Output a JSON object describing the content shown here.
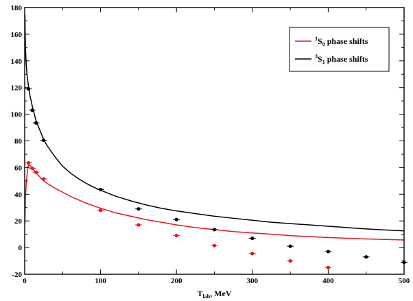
{
  "chart_data": {
    "type": "line",
    "xlabel": {
      "main": "T",
      "sub": "lab",
      "rest": ", MeV"
    },
    "ylabel": "",
    "xlim": [
      0,
      500
    ],
    "ylim": [
      -20,
      180
    ],
    "x_ticks": [
      0,
      100,
      200,
      300,
      400,
      500
    ],
    "y_ticks": [
      -20,
      0,
      20,
      40,
      60,
      80,
      100,
      120,
      140,
      160,
      180
    ],
    "grid": false,
    "legend_position": "top-right",
    "series": [
      {
        "name": "1S0 phase shifts",
        "legend": {
          "sup": "1",
          "base": "S",
          "sub": "0",
          "rest": " phase shifts"
        },
        "kind": "curve",
        "color": "#e8141b",
        "x": [
          0.3,
          1,
          2,
          3,
          4,
          5,
          7,
          10,
          15,
          20,
          25,
          30,
          40,
          50,
          60,
          70,
          80,
          90,
          100,
          120,
          140,
          160,
          180,
          200,
          225,
          250,
          275,
          300,
          325,
          350,
          375,
          400,
          425,
          450,
          475,
          500
        ],
        "y": [
          18,
          38,
          48,
          54,
          59,
          62,
          61.5,
          59.5,
          56,
          53,
          50,
          48,
          44.5,
          41.5,
          38.5,
          36,
          33.5,
          31.5,
          29.5,
          26,
          23.5,
          21,
          19,
          17,
          15,
          13.5,
          12,
          11,
          10,
          9,
          8.2,
          7.6,
          7,
          6.5,
          6.1,
          5.7
        ]
      },
      {
        "name": "3S1 phase shifts",
        "legend": {
          "sup": "3",
          "base": "S",
          "sub": "1",
          "rest": " phase shifts"
        },
        "kind": "curve",
        "color": "#000000",
        "x": [
          0.3,
          0.6,
          1,
          2,
          3,
          5,
          7,
          10,
          15,
          20,
          25,
          30,
          40,
          50,
          60,
          70,
          80,
          90,
          100,
          120,
          140,
          160,
          180,
          200,
          225,
          250,
          275,
          300,
          325,
          350,
          375,
          400,
          425,
          450,
          475,
          500
        ],
        "y": [
          175,
          162,
          150,
          138,
          130,
          121,
          114,
          106,
          95,
          88,
          81,
          76,
          68,
          61,
          56,
          52,
          48.5,
          45.5,
          43,
          38.5,
          35,
          32,
          29.5,
          27.5,
          25.5,
          23.5,
          22,
          20.5,
          19,
          18,
          17,
          16,
          15,
          14,
          13.2,
          12.5
        ]
      },
      {
        "name": "1S0 data",
        "kind": "points",
        "color": "#e8141b",
        "x": [
          5,
          10,
          15,
          25,
          100,
          150,
          200,
          250,
          300,
          350,
          400
        ],
        "y": [
          63.5,
          59.5,
          56.5,
          51.5,
          28,
          17,
          9,
          1.5,
          -4.5,
          -10,
          -15
        ]
      },
      {
        "name": "3S1 data",
        "kind": "points",
        "color": "#000000",
        "x": [
          5,
          10,
          15,
          25,
          100,
          150,
          200,
          250,
          300,
          350,
          400,
          450,
          500
        ],
        "y": [
          119,
          103,
          93.5,
          80.5,
          43.5,
          29,
          21,
          13.5,
          7,
          1,
          -3,
          -7,
          -11
        ]
      }
    ]
  }
}
